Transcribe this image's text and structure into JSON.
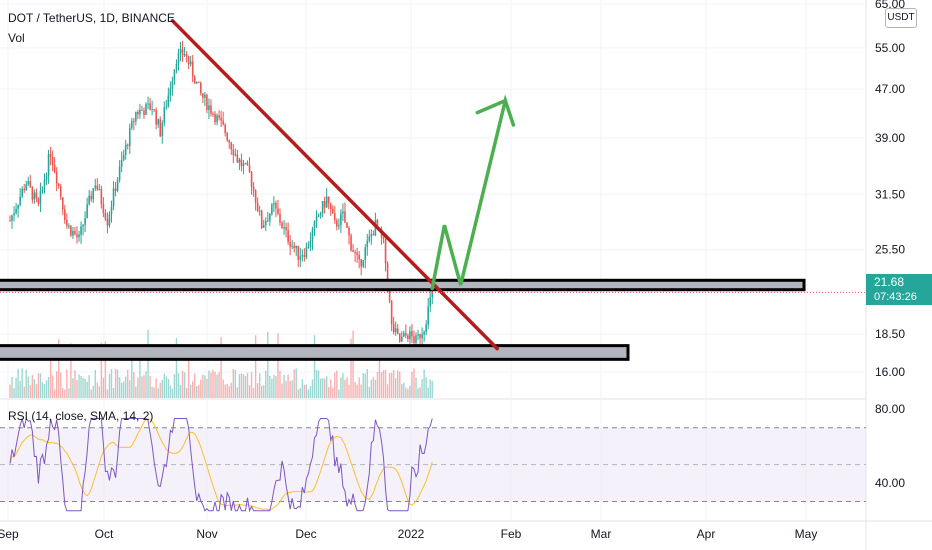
{
  "header": {
    "symbol": "DOT / TetherUS, 1D, BINANCE",
    "volume_label": "Vol",
    "currency": "USDT"
  },
  "rsi": {
    "label": "RSI (14, close, SMA, 14, 2)",
    "axis_ticks": [
      "80.00",
      "40.00"
    ],
    "upper_band": 70,
    "lower_band": 30,
    "middle": 50,
    "ylim": [
      20,
      85
    ]
  },
  "last_price": {
    "value": "21.68",
    "countdown": "07:43:26"
  },
  "colors": {
    "up": "#26a69a",
    "down": "#ef5350",
    "trendline": "#b71c1c",
    "projection": "#4caf50",
    "rsi_line": "#7e57c2",
    "rsi_sma": "#fbc02d",
    "zone_fill": "#b2b5be"
  },
  "chart_data": {
    "type": "candlestick",
    "price_axis": {
      "ticks": [
        "65.00",
        "55.00",
        "47.00",
        "39.00",
        "31.50",
        "25.50",
        "18.50",
        "16.00"
      ],
      "scale": "log",
      "ylim": [
        14.5,
        66
      ]
    },
    "time_axis": {
      "labels": [
        "Sep",
        "Oct",
        "Nov",
        "Dec",
        "2022",
        "Feb",
        "Mar",
        "Apr",
        "May"
      ]
    },
    "price_series": [
      {
        "day": 0,
        "price": 28.5
      },
      {
        "day": 8,
        "price": 33
      },
      {
        "day": 14,
        "price": 30
      },
      {
        "day": 20,
        "price": 37
      },
      {
        "day": 28,
        "price": 28
      },
      {
        "day": 34,
        "price": 26.5
      },
      {
        "day": 42,
        "price": 33
      },
      {
        "day": 48,
        "price": 28.5
      },
      {
        "day": 56,
        "price": 36.5
      },
      {
        "day": 62,
        "price": 43
      },
      {
        "day": 70,
        "price": 44
      },
      {
        "day": 74,
        "price": 40
      },
      {
        "day": 78,
        "price": 46
      },
      {
        "day": 82,
        "price": 53
      },
      {
        "day": 86,
        "price": 54
      },
      {
        "day": 89,
        "price": 51
      },
      {
        "day": 94,
        "price": 46
      },
      {
        "day": 100,
        "price": 43
      },
      {
        "day": 106,
        "price": 40
      },
      {
        "day": 112,
        "price": 36
      },
      {
        "day": 118,
        "price": 34
      },
      {
        "day": 124,
        "price": 28
      },
      {
        "day": 130,
        "price": 30
      },
      {
        "day": 136,
        "price": 27
      },
      {
        "day": 142,
        "price": 25
      },
      {
        "day": 146,
        "price": 25.5
      },
      {
        "day": 152,
        "price": 29
      },
      {
        "day": 156,
        "price": 31
      },
      {
        "day": 160,
        "price": 28
      },
      {
        "day": 164,
        "price": 29
      },
      {
        "day": 168,
        "price": 26
      },
      {
        "day": 172,
        "price": 24
      },
      {
        "day": 176,
        "price": 26
      },
      {
        "day": 180,
        "price": 28
      },
      {
        "day": 184,
        "price": 26
      },
      {
        "day": 188,
        "price": 19
      },
      {
        "day": 192,
        "price": 18
      },
      {
        "day": 196,
        "price": 18.5
      },
      {
        "day": 200,
        "price": 18
      },
      {
        "day": 204,
        "price": 19
      },
      {
        "day": 208,
        "price": 21.68
      }
    ],
    "trendline": {
      "from": {
        "day": 80,
        "price": 61
      },
      "to": {
        "day": 240,
        "price": 17.5
      }
    },
    "resistance_zone": {
      "low": 21.9,
      "high": 22.7
    },
    "support_zone": {
      "low": 16.8,
      "high": 17.7
    },
    "projection_path": [
      {
        "day": 208,
        "price": 22
      },
      {
        "day": 214,
        "price": 28
      },
      {
        "day": 222,
        "price": 22.3
      },
      {
        "day": 244,
        "price": 45
      },
      {
        "day": 248,
        "price": 41
      }
    ],
    "projection_arrow_tip": {
      "day": 244,
      "price": 45
    }
  }
}
